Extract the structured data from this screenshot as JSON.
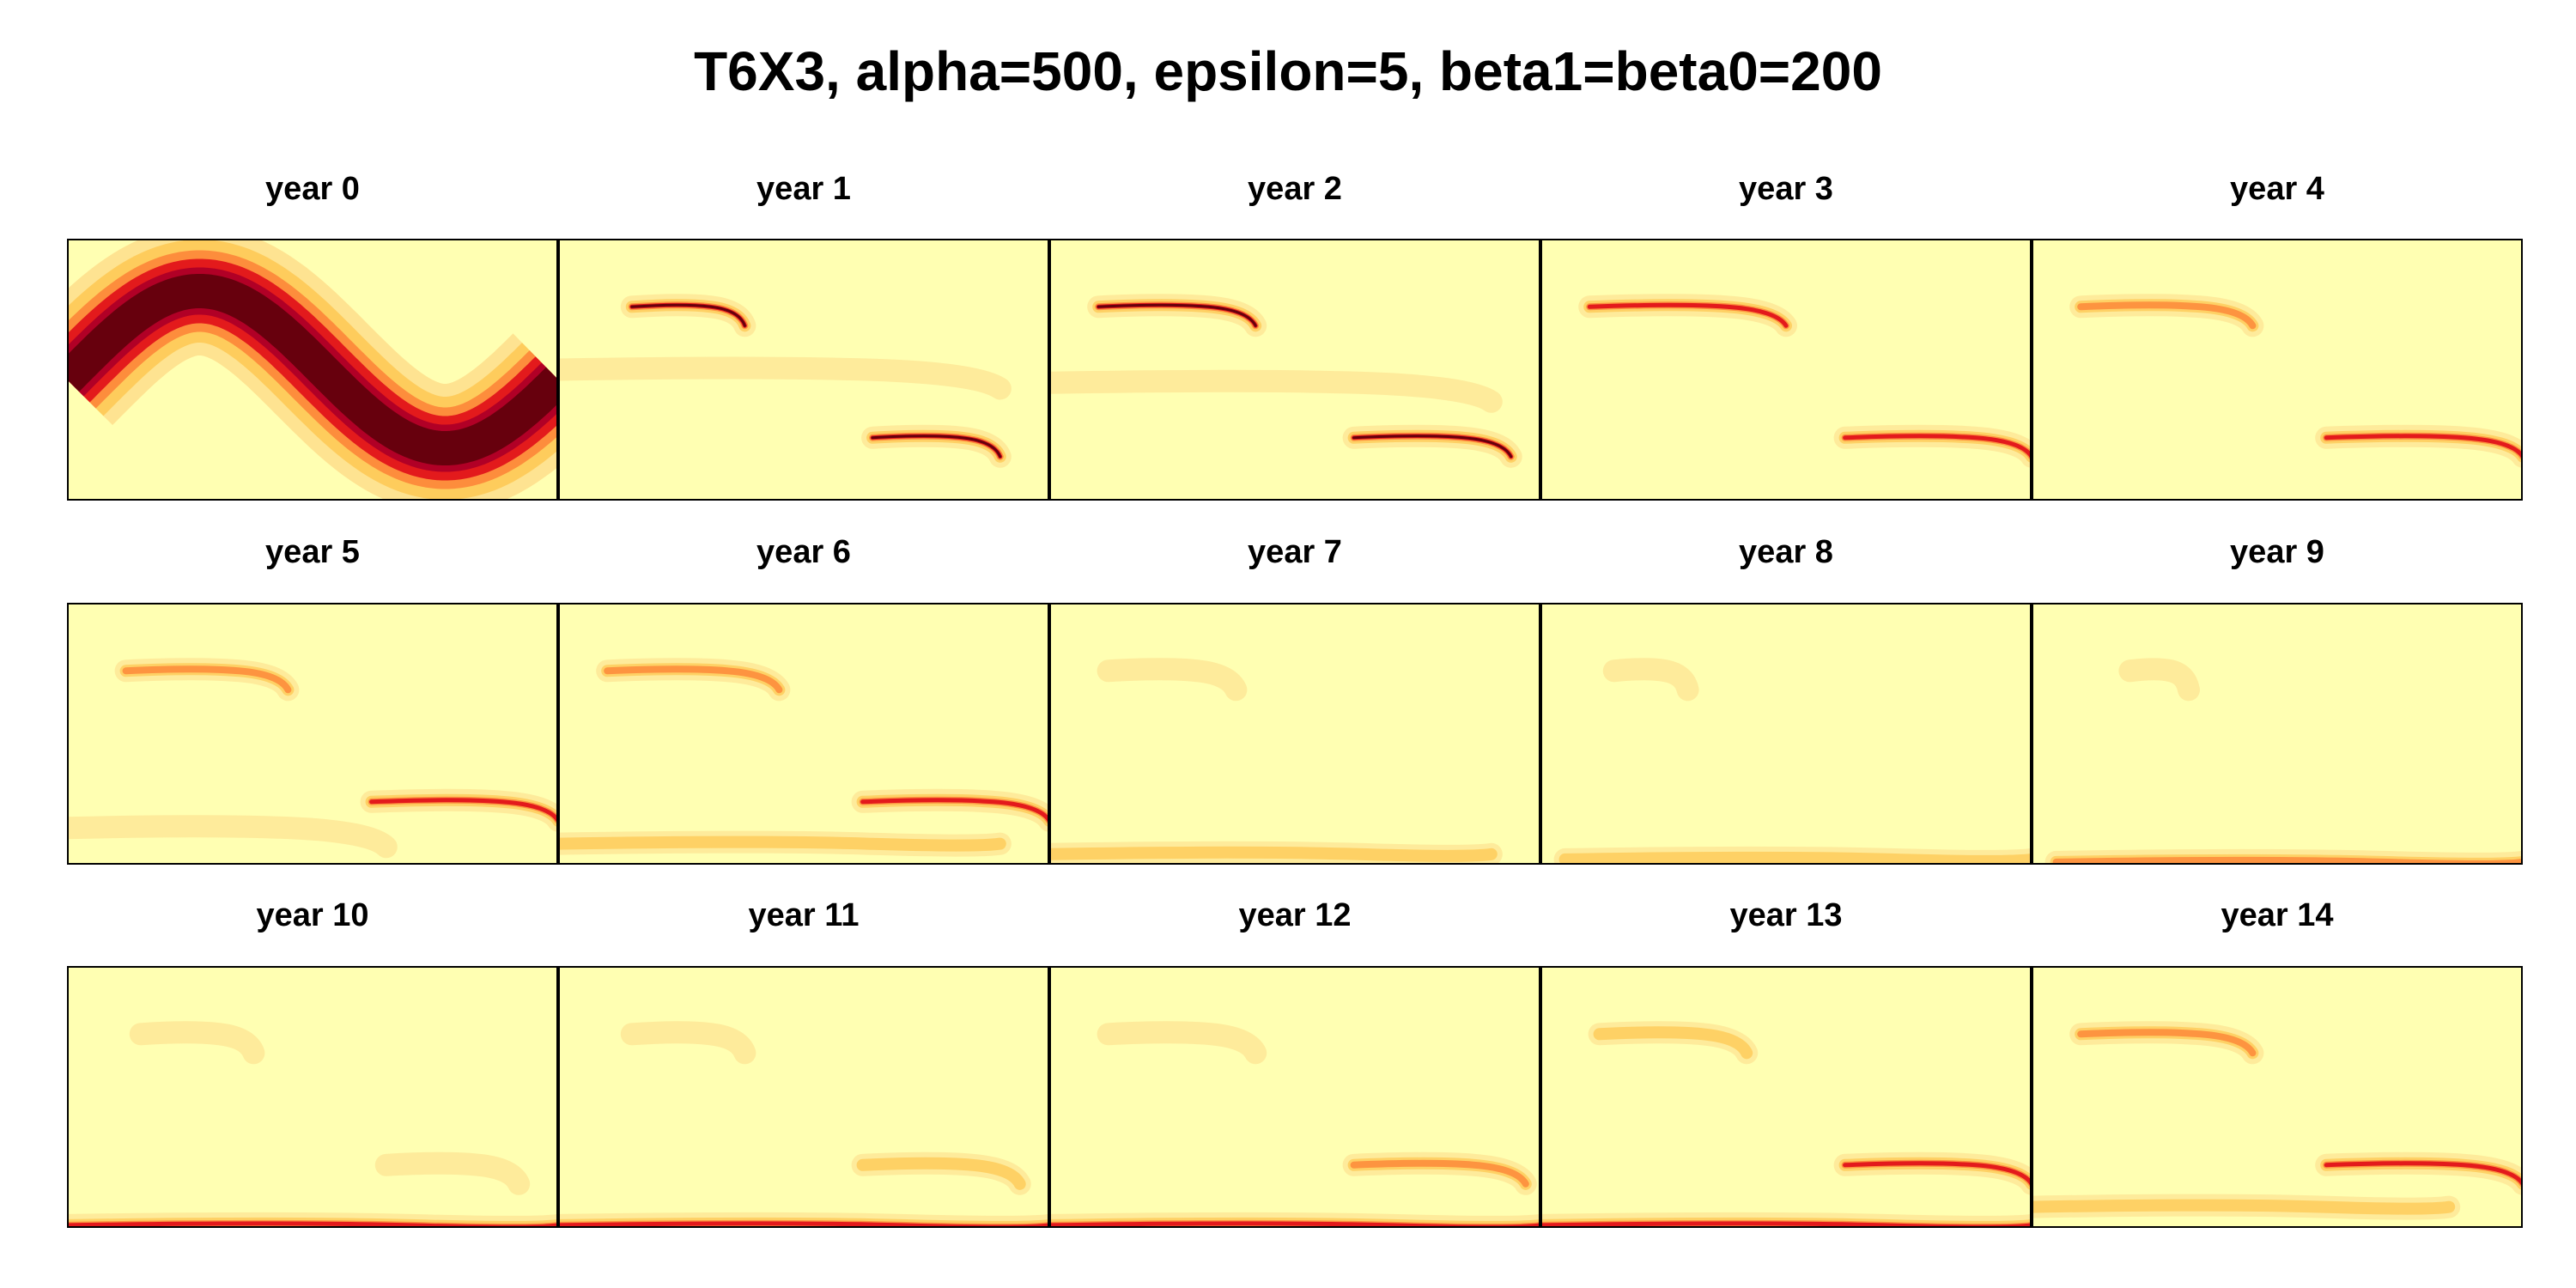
{
  "title": "T6X3, alpha=500, epsilon=5, beta1=beta0=200",
  "chart_data": {
    "type": "heatmap",
    "title": "T6X3, alpha=500, epsilon=5, beta1=beta0=200",
    "panels": [
      "year 0",
      "year 1",
      "year 2",
      "year 3",
      "year 4",
      "year 5",
      "year 6",
      "year 7",
      "year 8",
      "year 9",
      "year 10",
      "year 11",
      "year 12",
      "year 13",
      "year 14"
    ],
    "layout": {
      "rows": 3,
      "cols": 5
    },
    "axes": "none",
    "colormap": [
      "#FFFFB2",
      "#FEE391",
      "#FECC5C",
      "#FD8D3C",
      "#E31A1C",
      "#B10026",
      "#67000D"
    ],
    "background_color": "#FFFFB2",
    "density_bands_by_year": [
      [
        {
          "kind": "sine"
        }
      ],
      [
        {
          "x": [
            0.15,
            0.38
          ],
          "y": 0.26,
          "intensity": 1.0
        },
        {
          "x": [
            0.64,
            0.9
          ],
          "y": 0.76,
          "intensity": 1.0
        },
        {
          "x": [
            0.0,
            0.9
          ],
          "y": 0.5,
          "intensity": 0.3
        }
      ],
      [
        {
          "x": [
            0.1,
            0.42
          ],
          "y": 0.26,
          "intensity": 0.9
        },
        {
          "x": [
            0.62,
            0.94
          ],
          "y": 0.76,
          "intensity": 0.9
        },
        {
          "x": [
            0.0,
            0.9
          ],
          "y": 0.55,
          "intensity": 0.15
        }
      ],
      [
        {
          "x": [
            0.1,
            0.5
          ],
          "y": 0.26,
          "intensity": 0.8
        },
        {
          "x": [
            0.62,
            1.0
          ],
          "y": 0.76,
          "intensity": 0.85
        }
      ],
      [
        {
          "x": [
            0.1,
            0.45
          ],
          "y": 0.26,
          "intensity": 0.7
        },
        {
          "x": [
            0.6,
            1.0
          ],
          "y": 0.76,
          "intensity": 0.85
        }
      ],
      [
        {
          "x": [
            0.12,
            0.45
          ],
          "y": 0.26,
          "intensity": 0.6
        },
        {
          "x": [
            0.62,
            1.0
          ],
          "y": 0.76,
          "intensity": 0.85
        },
        {
          "x": [
            0.0,
            0.65
          ],
          "y": 0.86,
          "intensity": 0.25
        }
      ],
      [
        {
          "x": [
            0.1,
            0.45
          ],
          "y": 0.26,
          "intensity": 0.7
        },
        {
          "x": [
            0.62,
            1.0
          ],
          "y": 0.76,
          "intensity": 0.85
        },
        {
          "x": [
            0.0,
            0.9
          ],
          "y": 0.92,
          "intensity": 0.45
        }
      ],
      [
        {
          "x": [
            0.12,
            0.38
          ],
          "y": 0.26,
          "intensity": 0.25
        },
        {
          "x": [
            0.0,
            0.9
          ],
          "y": 0.96,
          "intensity": 0.45
        }
      ],
      [
        {
          "x": [
            0.15,
            0.3
          ],
          "y": 0.26,
          "intensity": 0.15
        },
        {
          "x": [
            0.05,
            1.0
          ],
          "y": 0.98,
          "intensity": 0.5
        }
      ],
      [
        {
          "x": [
            0.2,
            0.32
          ],
          "y": 0.26,
          "intensity": 0.12
        },
        {
          "x": [
            0.05,
            1.0
          ],
          "y": 0.99,
          "intensity": 0.6
        }
      ],
      [
        {
          "x": [
            0.15,
            0.38
          ],
          "y": 0.26,
          "intensity": 0.15
        },
        {
          "x": [
            0.65,
            0.92
          ],
          "y": 0.76,
          "intensity": 0.2
        },
        {
          "x": [
            0.0,
            1.0
          ],
          "y": 0.99,
          "intensity": 0.8
        }
      ],
      [
        {
          "x": [
            0.15,
            0.38
          ],
          "y": 0.26,
          "intensity": 0.2
        },
        {
          "x": [
            0.62,
            0.94
          ],
          "y": 0.76,
          "intensity": 0.35
        },
        {
          "x": [
            0.0,
            1.0
          ],
          "y": 0.99,
          "intensity": 0.8
        }
      ],
      [
        {
          "x": [
            0.12,
            0.42
          ],
          "y": 0.26,
          "intensity": 0.3
        },
        {
          "x": [
            0.62,
            0.97
          ],
          "y": 0.76,
          "intensity": 0.6
        },
        {
          "x": [
            0.0,
            1.0
          ],
          "y": 0.99,
          "intensity": 0.8
        }
      ],
      [
        {
          "x": [
            0.12,
            0.42
          ],
          "y": 0.26,
          "intensity": 0.5
        },
        {
          "x": [
            0.62,
            1.0
          ],
          "y": 0.76,
          "intensity": 0.75
        },
        {
          "x": [
            0.0,
            1.0
          ],
          "y": 0.99,
          "intensity": 0.8
        }
      ],
      [
        {
          "x": [
            0.1,
            0.45
          ],
          "y": 0.26,
          "intensity": 0.6
        },
        {
          "x": [
            0.6,
            1.0
          ],
          "y": 0.76,
          "intensity": 0.85
        },
        {
          "x": [
            0.0,
            0.85
          ],
          "y": 0.92,
          "intensity": 0.4
        }
      ]
    ]
  }
}
